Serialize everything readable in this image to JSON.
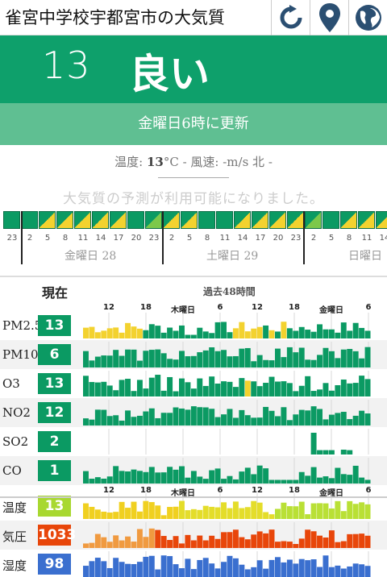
{
  "header": {
    "title": "雀宮中学校宇都宮市の大気質",
    "buttons": [
      {
        "icon": "refresh-icon"
      },
      {
        "icon": "location-pin-icon"
      },
      {
        "icon": "globe-icon"
      }
    ]
  },
  "aqi": {
    "value": "13",
    "label": "良い",
    "updated": "金曜日6時に更新",
    "color": "#0ea06b"
  },
  "weather": {
    "temp_label": "温度:",
    "temp_value": "13",
    "temp_unit": "°C",
    "wind_text": " - 風速: -m/s 北 -"
  },
  "forecast": {
    "message": "大気質の予測が利用可能になりました。",
    "hours": [
      "23",
      "2",
      "5",
      "8",
      "11",
      "14",
      "17",
      "20",
      "23",
      "2",
      "5",
      "8",
      "11",
      "14",
      "17",
      "20",
      "23",
      "2",
      "5",
      "8",
      "11",
      "14"
    ],
    "days": [
      {
        "label": "金曜日 28"
      },
      {
        "label": "土曜日 29"
      },
      {
        "label": "日曜日"
      }
    ],
    "cells": [
      "green",
      "green",
      "split-yg",
      "split-yg",
      "split-yg",
      "split-yg",
      "split-yg",
      "green",
      "split-g",
      "split-yg",
      "split-yg",
      "green",
      "green",
      "split-yg",
      "split-yg",
      "split-yg",
      "split-yg",
      "split-g",
      "green",
      "split-yg",
      "split-yg",
      "split-yg"
    ]
  },
  "history": {
    "now_label": "現在",
    "period_label": "過去48時間",
    "axis_top": [
      "12",
      "18",
      "木曜日",
      "6",
      "12",
      "18",
      "金曜日",
      "6"
    ],
    "rows": [
      {
        "name": "PM2.5",
        "value": "13",
        "badge_color": "#0b9a63",
        "series_key": "pm25"
      },
      {
        "name": "PM10",
        "value": "6",
        "badge_color": "#0b9a63",
        "series_key": "pm10"
      },
      {
        "name": "O3",
        "value": "13",
        "badge_color": "#0b9a63",
        "series_key": "o3"
      },
      {
        "name": "NO2",
        "value": "12",
        "badge_color": "#0b9a63",
        "series_key": "no2"
      },
      {
        "name": "SO2",
        "value": "2",
        "badge_color": "#0b9a63",
        "series_key": "so2"
      },
      {
        "name": "CO",
        "value": "1",
        "badge_color": "#0b9a63",
        "series_key": "co"
      },
      {
        "name": "温度",
        "value": "13",
        "badge_color": "#a8d830",
        "series_key": "temp"
      },
      {
        "name": "気圧",
        "value": "1033",
        "badge_color": "#e8460a",
        "series_key": "pressure"
      },
      {
        "name": "湿度",
        "value": "98",
        "badge_color": "#3a6fcf",
        "series_key": "humidity"
      }
    ]
  },
  "colors": {
    "green": "#0b9a63",
    "yellow": "#f3d22f",
    "light_green": "#a8d830",
    "orange": "#f07020",
    "blue": "#3a6fcf"
  }
}
